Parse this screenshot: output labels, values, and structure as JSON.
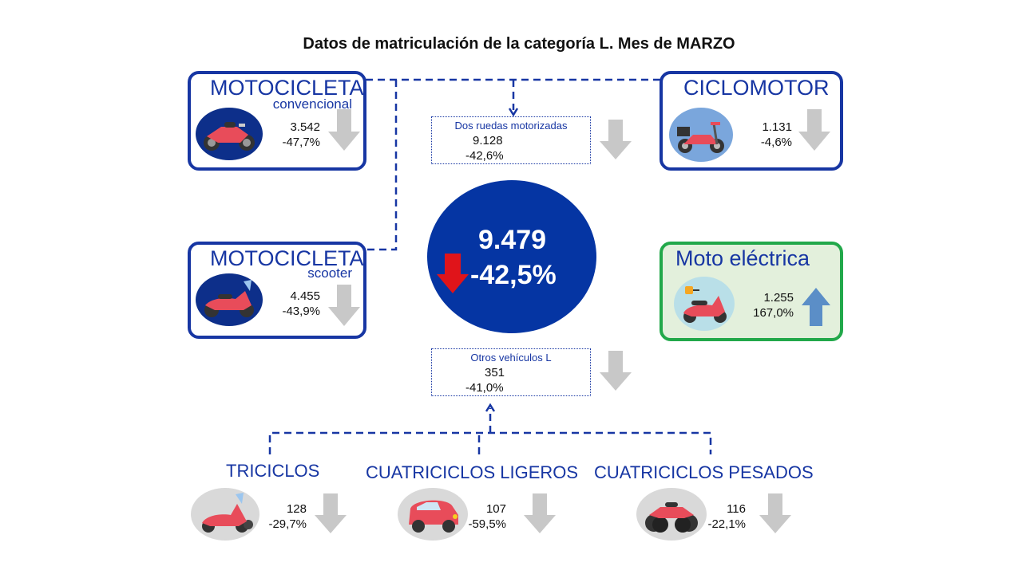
{
  "title": "Datos de matriculación de la categoría L. Mes de MARZO",
  "total": {
    "value": "9.479",
    "change": "-42,5%",
    "trend": "down"
  },
  "motocicleta_convencional": {
    "title": "MOTOCICLETA",
    "subtitle": "convencional",
    "value": "3.542",
    "change": "-47,7%",
    "trend": "down"
  },
  "motocicleta_scooter": {
    "title": "MOTOCICLETA",
    "subtitle": "scooter",
    "value": "4.455",
    "change": "-43,9%",
    "trend": "down"
  },
  "ciclomotor": {
    "title": "CICLOMOTOR",
    "value": "1.131",
    "change": "-4,6%",
    "trend": "down"
  },
  "moto_electrica": {
    "title": "Moto eléctrica",
    "value": "1.255",
    "change": "167,0%",
    "trend": "up"
  },
  "dos_ruedas": {
    "label": "Dos ruedas motorizadas",
    "value": "9.128",
    "change": "-42,6%",
    "trend": "down"
  },
  "otros_vehiculos": {
    "label": "Otros vehículos L",
    "value": "351",
    "change": "-41,0%",
    "trend": "down"
  },
  "triciclos": {
    "title": "TRICICLOS",
    "value": "128",
    "change": "-29,7%",
    "trend": "down"
  },
  "cuatriciclos_ligeros": {
    "title": "CUATRICICLOS LIGEROS",
    "value": "107",
    "change": "-59,5%",
    "trend": "down"
  },
  "cuatriciclos_pesados": {
    "title": "CUATRICICLOS PESADOS",
    "value": "116",
    "change": "-22,1%",
    "trend": "down"
  },
  "colors": {
    "primary_blue": "#1736a3",
    "circle_blue": "#0535a3",
    "green_border": "#22a84a",
    "green_fill": "#e3f0dc",
    "down_arrow_gray": "#c8c8c8",
    "total_down_arrow": "#e0141a",
    "up_arrow_blue": "#5b8ec7"
  },
  "icons": {
    "motocicleta_convencional": "sport-motorcycle-icon",
    "motocicleta_scooter": "scooter-icon",
    "ciclomotor": "moped-icon",
    "moto_electrica": "electric-scooter-icon",
    "triciclos": "tricycle-scooter-icon",
    "cuatriciclos_ligeros": "microcar-icon",
    "cuatriciclos_pesados": "quad-bike-icon"
  }
}
